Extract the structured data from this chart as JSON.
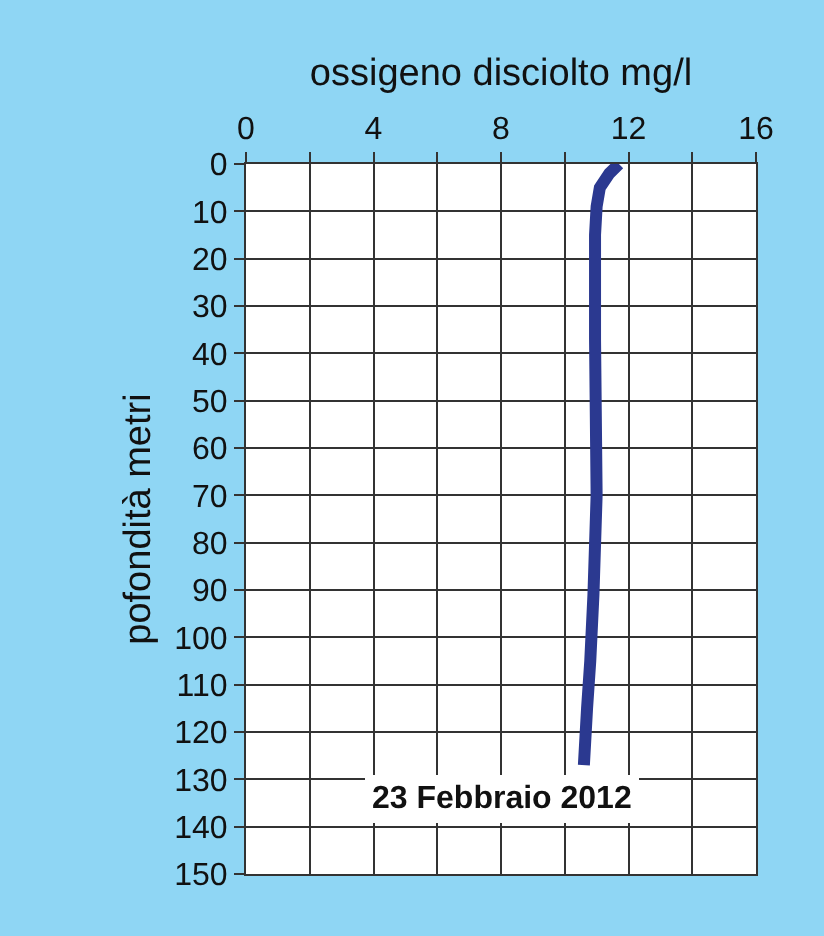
{
  "chart_data": {
    "type": "line",
    "xlabel": "ossigeno disciolto mg/l",
    "ylabel": "pofondità metri",
    "annotations": [
      "23 Febbraio 2012"
    ],
    "series": [
      {
        "color": "#2b3990",
        "x": [
          11.7,
          11.4,
          11.1,
          11.0,
          10.95,
          10.95,
          11.0,
          10.9,
          10.8,
          10.7,
          10.6
        ],
        "values": [
          0,
          2,
          5,
          9,
          15,
          37,
          70,
          91,
          105,
          115,
          127
        ]
      }
    ],
    "xlim": [
      0,
      16
    ],
    "xticks": [
      0,
      {
        "value": 2,
        "label": null
      },
      4,
      {
        "value": 6,
        "label": null
      },
      8,
      {
        "value": 10,
        "label": null
      },
      12,
      {
        "value": 14,
        "label": null
      },
      16
    ],
    "ylim": [
      150,
      0
    ],
    "yticks": [
      0,
      10,
      20,
      30,
      40,
      50,
      60,
      70,
      80,
      90,
      100,
      110,
      120,
      130,
      140,
      150
    ],
    "grid": true,
    "marker": "none",
    "line_style": "solid"
  }
}
